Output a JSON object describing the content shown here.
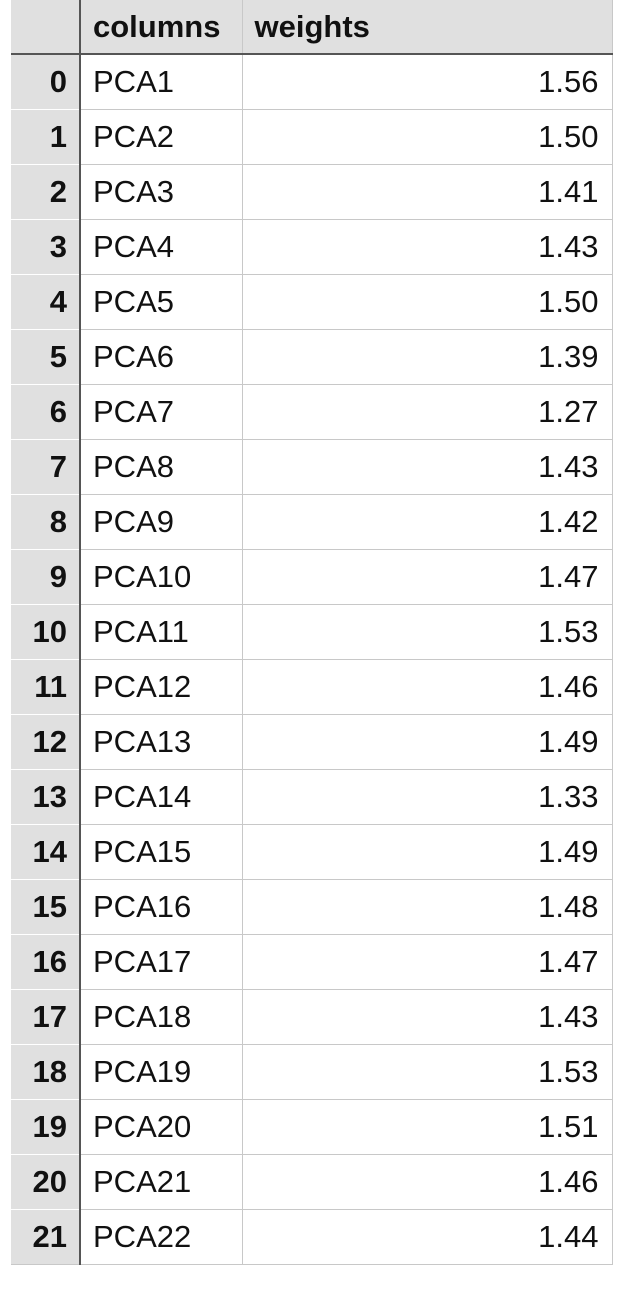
{
  "table": {
    "headers": {
      "index": "",
      "columns": "columns",
      "weights": "weights"
    },
    "rows": [
      {
        "index": "0",
        "column": "PCA1",
        "weight": "1.56"
      },
      {
        "index": "1",
        "column": "PCA2",
        "weight": "1.50"
      },
      {
        "index": "2",
        "column": "PCA3",
        "weight": "1.41"
      },
      {
        "index": "3",
        "column": "PCA4",
        "weight": "1.43"
      },
      {
        "index": "4",
        "column": "PCA5",
        "weight": "1.50"
      },
      {
        "index": "5",
        "column": "PCA6",
        "weight": "1.39"
      },
      {
        "index": "6",
        "column": "PCA7",
        "weight": "1.27"
      },
      {
        "index": "7",
        "column": "PCA8",
        "weight": "1.43"
      },
      {
        "index": "8",
        "column": "PCA9",
        "weight": "1.42"
      },
      {
        "index": "9",
        "column": "PCA10",
        "weight": "1.47"
      },
      {
        "index": "10",
        "column": "PCA11",
        "weight": "1.53"
      },
      {
        "index": "11",
        "column": "PCA12",
        "weight": "1.46"
      },
      {
        "index": "12",
        "column": "PCA13",
        "weight": "1.49"
      },
      {
        "index": "13",
        "column": "PCA14",
        "weight": "1.33"
      },
      {
        "index": "14",
        "column": "PCA15",
        "weight": "1.49"
      },
      {
        "index": "15",
        "column": "PCA16",
        "weight": "1.48"
      },
      {
        "index": "16",
        "column": "PCA17",
        "weight": "1.47"
      },
      {
        "index": "17",
        "column": "PCA18",
        "weight": "1.43"
      },
      {
        "index": "18",
        "column": "PCA19",
        "weight": "1.53"
      },
      {
        "index": "19",
        "column": "PCA20",
        "weight": "1.51"
      },
      {
        "index": "20",
        "column": "PCA21",
        "weight": "1.46"
      },
      {
        "index": "21",
        "column": "PCA22",
        "weight": "1.44"
      }
    ]
  }
}
